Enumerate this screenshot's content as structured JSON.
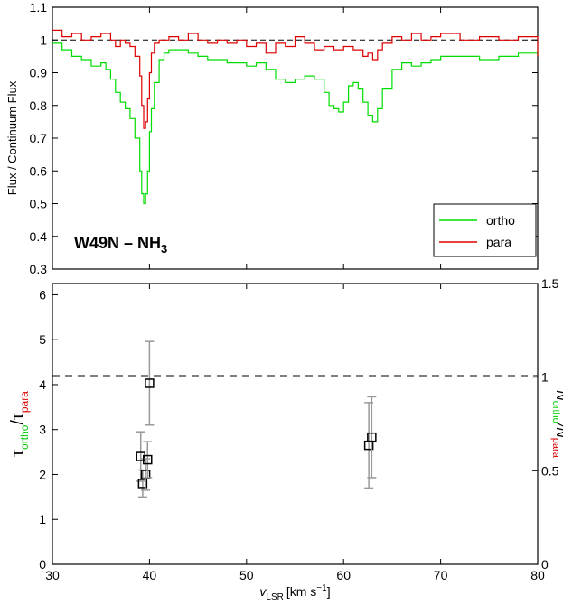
{
  "chart_data": [
    {
      "type": "line",
      "title": "W49N  –  NH3",
      "title_main": "W49N  –  NH",
      "title_sub": "3",
      "xlabel": "",
      "ylabel": "Flux / Continuum Flux",
      "xlim": [
        30,
        80
      ],
      "ylim": [
        0.3,
        1.1
      ],
      "x_ticks": [
        30,
        40,
        50,
        60,
        70,
        80
      ],
      "y_ticks": [
        "0.3",
        "0.4",
        "0.5",
        "0.6",
        "0.7",
        "0.8",
        "0.9",
        "1",
        "1.1"
      ],
      "reference_line": 1.0,
      "legend_position": "bottom-right",
      "colors": {
        "ortho": "#00dd00",
        "para": "#dd0000"
      },
      "series": [
        {
          "name": "ortho",
          "x": [
            30.0,
            31.0,
            32.0,
            33.0,
            34.0,
            35.0,
            35.5,
            36.0,
            36.5,
            37.0,
            37.5,
            38.0,
            38.5,
            39.0,
            39.2,
            39.4,
            39.6,
            39.8,
            40.0,
            40.2,
            40.5,
            41.0,
            41.5,
            42.0,
            42.5,
            43.0,
            44.0,
            45.0,
            46.0,
            47.0,
            48.0,
            49.0,
            50.0,
            51.0,
            52.0,
            53.0,
            54.0,
            55.0,
            56.0,
            57.0,
            58.0,
            58.5,
            59.0,
            59.5,
            60.0,
            60.5,
            61.0,
            61.5,
            62.0,
            62.5,
            63.0,
            63.5,
            64.0,
            65.0,
            66.0,
            67.0,
            68.0,
            69.0,
            70.0,
            72.0,
            74.0,
            76.0,
            78.0,
            80.0
          ],
          "y": [
            0.99,
            0.97,
            0.95,
            0.94,
            0.92,
            0.93,
            0.91,
            0.88,
            0.84,
            0.81,
            0.79,
            0.76,
            0.7,
            0.6,
            0.53,
            0.5,
            0.53,
            0.6,
            0.72,
            0.79,
            0.87,
            0.94,
            0.96,
            0.97,
            0.97,
            0.97,
            0.96,
            0.95,
            0.94,
            0.94,
            0.93,
            0.93,
            0.92,
            0.93,
            0.91,
            0.88,
            0.87,
            0.88,
            0.89,
            0.88,
            0.84,
            0.8,
            0.79,
            0.78,
            0.81,
            0.86,
            0.87,
            0.85,
            0.81,
            0.77,
            0.75,
            0.79,
            0.85,
            0.91,
            0.93,
            0.92,
            0.93,
            0.94,
            0.95,
            0.95,
            0.94,
            0.95,
            0.96,
            0.95
          ]
        },
        {
          "name": "para",
          "x": [
            30.0,
            31.0,
            32.0,
            33.0,
            34.0,
            35.0,
            36.0,
            36.5,
            37.0,
            37.5,
            38.0,
            38.5,
            39.0,
            39.2,
            39.4,
            39.6,
            39.8,
            40.0,
            40.2,
            40.5,
            41.0,
            42.0,
            43.0,
            44.0,
            45.0,
            46.0,
            47.0,
            48.0,
            49.0,
            50.0,
            51.0,
            52.0,
            53.0,
            54.0,
            55.0,
            56.0,
            57.0,
            58.0,
            59.0,
            60.0,
            61.0,
            62.0,
            62.5,
            63.0,
            63.5,
            64.0,
            65.0,
            66.0,
            67.0,
            68.0,
            69.0,
            70.0,
            72.0,
            74.0,
            76.0,
            78.0,
            80.0
          ],
          "y": [
            1.03,
            1.01,
            1.02,
            1.0,
            1.01,
            1.02,
            1.0,
            0.98,
            1.0,
            0.99,
            0.98,
            0.95,
            0.89,
            0.8,
            0.73,
            0.75,
            0.82,
            0.9,
            0.96,
            0.99,
            1.0,
            1.01,
            1.0,
            1.02,
            1.0,
            0.99,
            1.0,
            0.99,
            1.0,
            0.98,
            0.99,
            0.96,
            0.99,
            0.98,
            1.01,
            0.99,
            0.97,
            0.98,
            0.97,
            0.98,
            0.97,
            0.95,
            0.96,
            0.94,
            0.97,
            0.99,
            1.01,
            1.0,
            1.02,
            1.0,
            1.01,
            1.02,
            1.0,
            1.01,
            1.0,
            1.01,
            0.95
          ]
        }
      ]
    },
    {
      "type": "scatter",
      "xlabel": "v",
      "xlabel_sub": "LSR",
      "xlabel_unit": "[km s",
      "xlabel_exp": "−1",
      "xlabel_close": "]",
      "ylabel_left": {
        "tau1": "τ",
        "sub1": "ortho",
        "slash": "/τ",
        "sub2": "para"
      },
      "ylabel_right": {
        "n1": "N",
        "sub1": "ortho",
        "slash": "/N",
        "sub2": "para"
      },
      "xlim": [
        30,
        80
      ],
      "ylim": [
        0,
        6.25
      ],
      "ylim_right": [
        0,
        1.5
      ],
      "x_ticks": [
        "30",
        "40",
        "50",
        "60",
        "70",
        "80"
      ],
      "y_ticks": [
        "0",
        "1",
        "2",
        "3",
        "4",
        "5",
        "6"
      ],
      "y_ticks_right": [
        "0",
        "0.5",
        "1",
        "1.5"
      ],
      "reference_line": 4.2,
      "error_color": "#999999",
      "points": [
        {
          "x": 39.1,
          "y": 2.4,
          "err_low": 0.55,
          "err_high": 0.55
        },
        {
          "x": 39.3,
          "y": 1.8,
          "err_low": 0.3,
          "err_high": 0.3
        },
        {
          "x": 39.6,
          "y": 2.0,
          "err_low": 0.35,
          "err_high": 0.35
        },
        {
          "x": 39.8,
          "y": 2.33,
          "err_low": 0.4,
          "err_high": 0.4
        },
        {
          "x": 40.0,
          "y": 4.03,
          "err_low": 0.93,
          "err_high": 0.93
        },
        {
          "x": 62.6,
          "y": 2.65,
          "err_low": 0.95,
          "err_high": 0.95
        },
        {
          "x": 62.9,
          "y": 2.83,
          "err_low": 0.9,
          "err_high": 0.9
        }
      ]
    }
  ]
}
